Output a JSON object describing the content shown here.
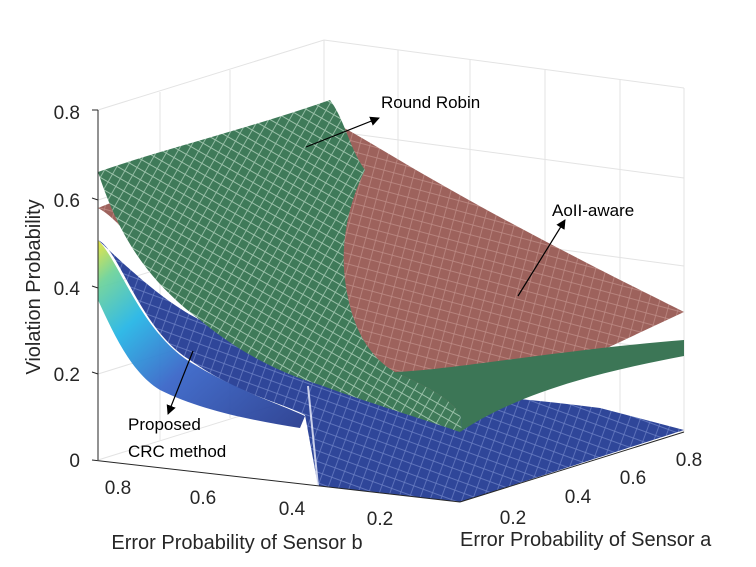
{
  "chart_data": {
    "type": "surface",
    "title": "",
    "zlabel": "Violation Probability",
    "xlabel": "Error Probability of Sensor b",
    "ylabel": "Error Probability of Sensor a",
    "zlim": [
      0,
      0.8
    ],
    "z_ticks": [
      "0",
      "0.2",
      "0.4",
      "0.6",
      "0.8"
    ],
    "x_ticks": [
      "0.8",
      "0.6",
      "0.4",
      "0.2"
    ],
    "y_ticks": [
      "0.2",
      "0.4",
      "0.6",
      "0.8"
    ],
    "grid": true,
    "series": [
      {
        "name": "Round Robin",
        "color": "#3f7a59",
        "points": [
          {
            "error_b": 0.9,
            "error_a": 0.1,
            "value": 0.65
          },
          {
            "error_b": 0.5,
            "error_a": 0.1,
            "value": 0.83
          },
          {
            "error_b": 0.1,
            "error_a": 0.1,
            "value": 0.35
          },
          {
            "error_b": 0.1,
            "error_a": 0.9,
            "value": 0.05
          }
        ]
      },
      {
        "name": "AoII-aware",
        "color": "#a0655f",
        "points": [
          {
            "error_b": 0.9,
            "error_a": 0.1,
            "value": 0.57
          },
          {
            "error_b": 0.1,
            "error_a": 0.1,
            "value": 0.05
          },
          {
            "error_b": 0.1,
            "error_a": 0.9,
            "value": 0.05
          },
          {
            "error_b": 0.9,
            "error_a": 0.9,
            "value": 0.25
          }
        ]
      },
      {
        "name": "Proposed CRC method",
        "color": "#2f3f96",
        "points": [
          {
            "error_b": 0.9,
            "error_a": 0.1,
            "value": 0.5
          },
          {
            "error_b": 0.7,
            "error_a": 0.1,
            "value": 0.3
          },
          {
            "error_b": 0.4,
            "error_a": 0.1,
            "value": 0.1
          },
          {
            "error_b": 0.1,
            "error_a": 0.9,
            "value": 0.0
          }
        ]
      }
    ],
    "annotations": [
      {
        "text": "Round Robin"
      },
      {
        "text": "AoII-aware"
      },
      {
        "lines": [
          "Proposed",
          "CRC method"
        ]
      }
    ]
  }
}
